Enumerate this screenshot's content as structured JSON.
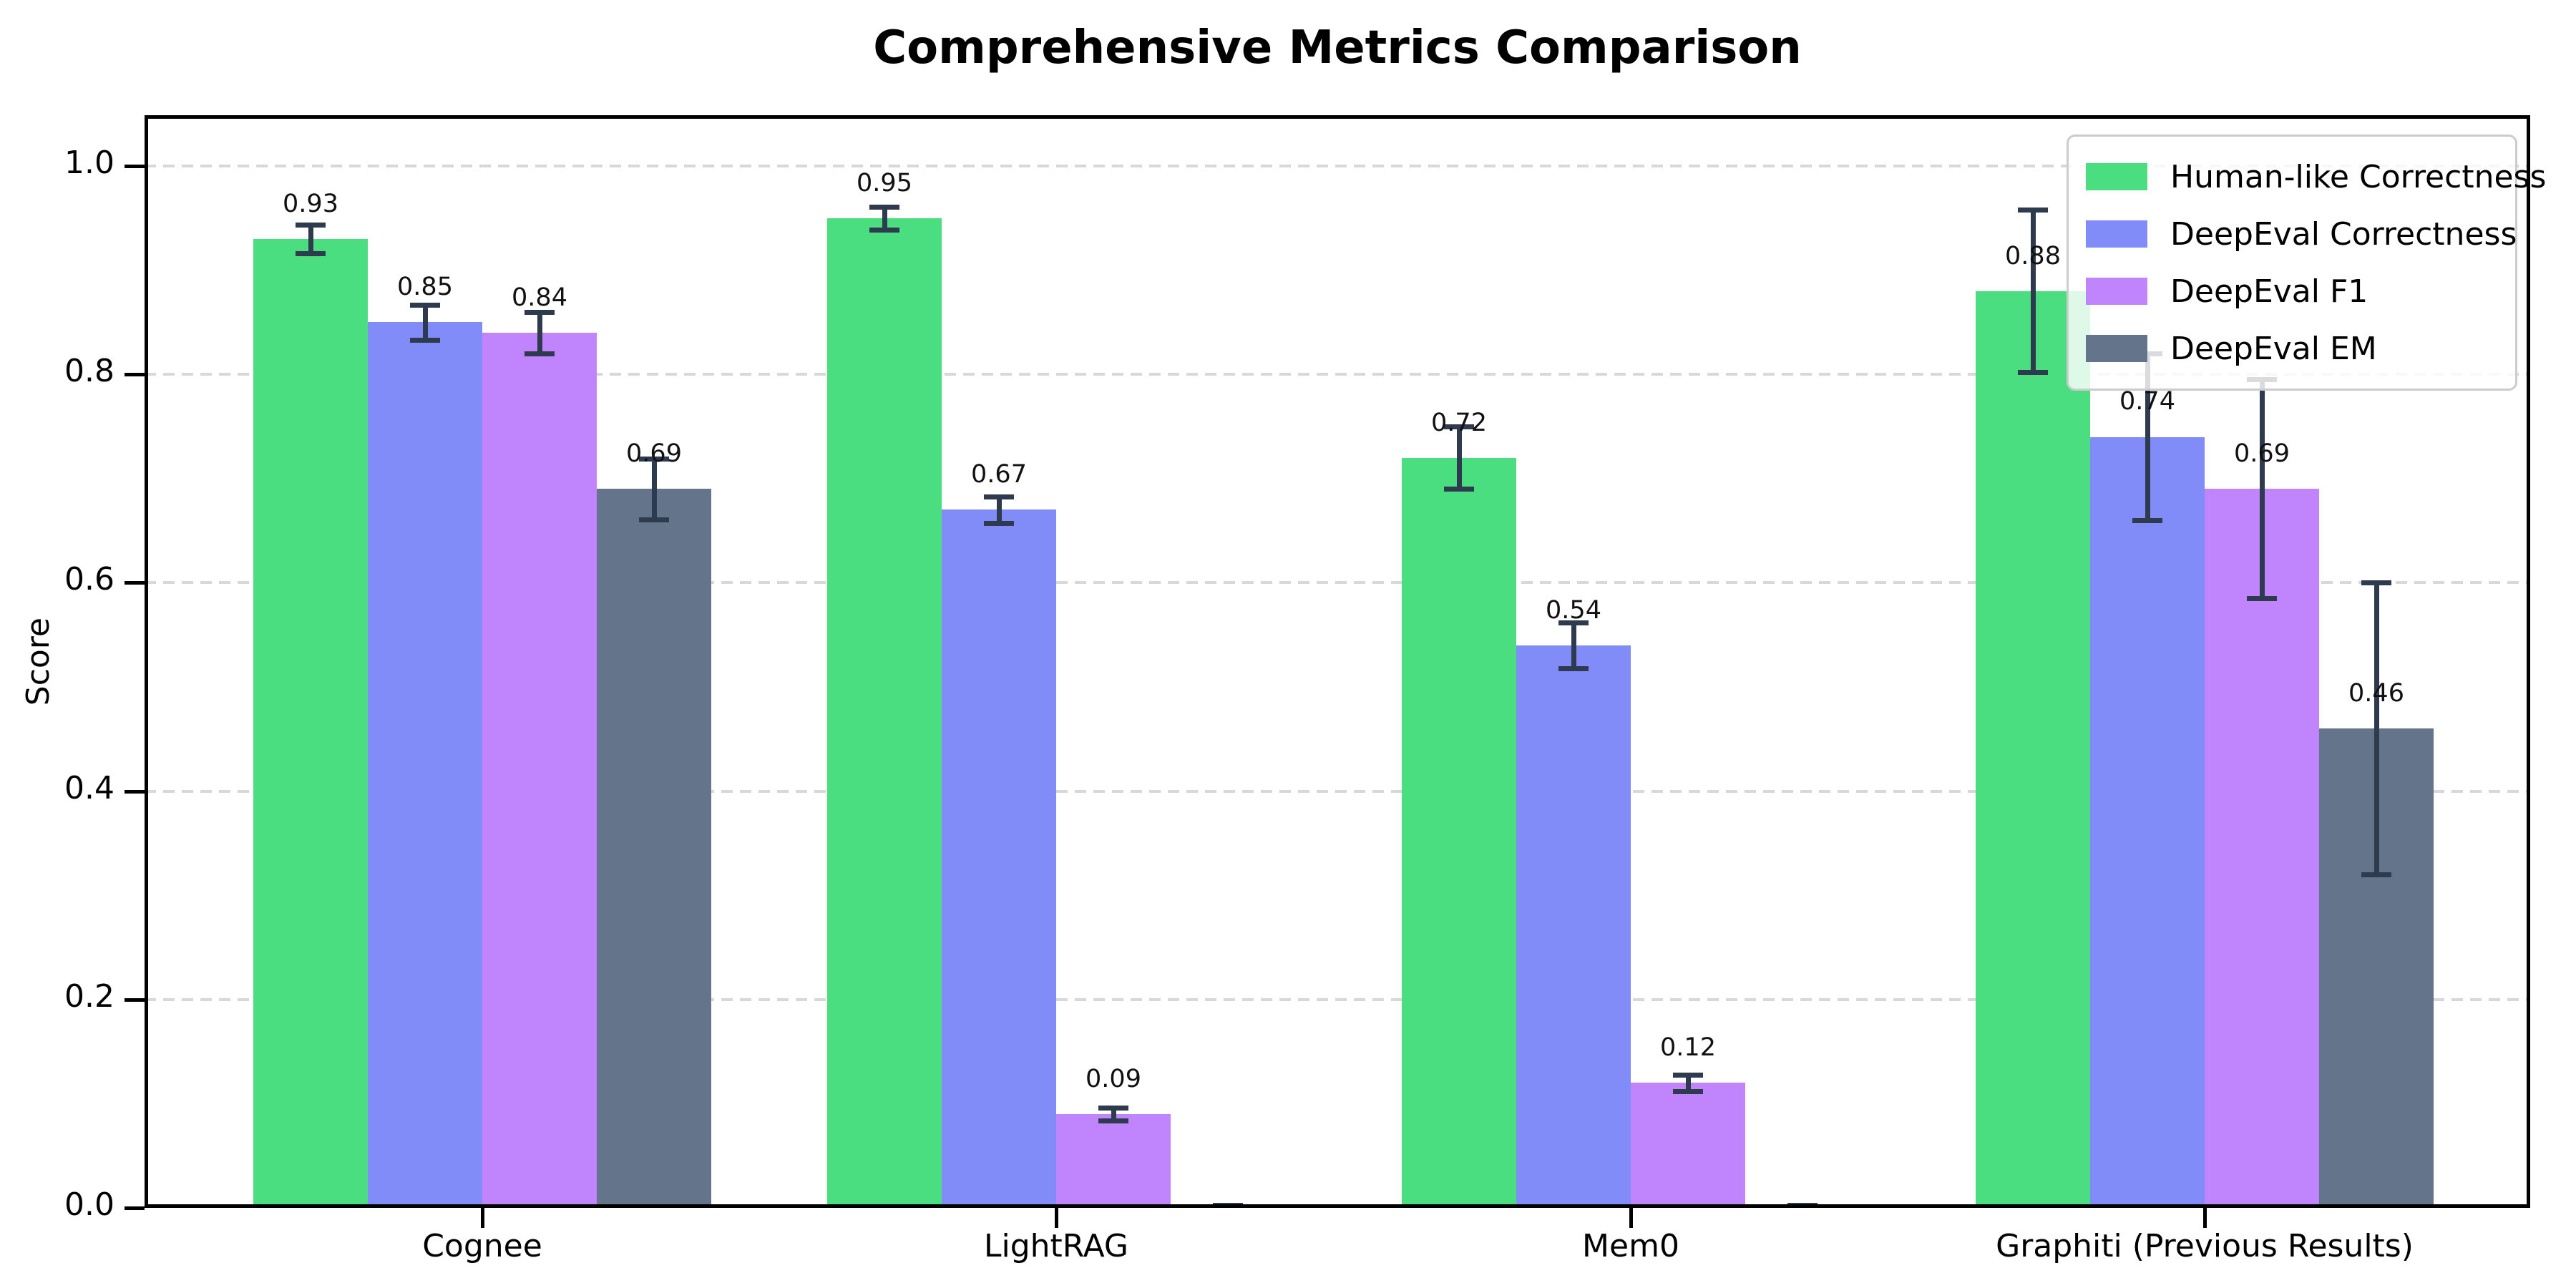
{
  "title": "Comprehensive Metrics Comparison",
  "chart_data": {
    "type": "bar",
    "title": "Comprehensive Metrics Comparison",
    "xlabel": "",
    "ylabel": "Score",
    "ylim": [
      0.0,
      1.05
    ],
    "yticks": [
      0.0,
      0.2,
      0.4,
      0.6,
      0.8,
      1.0
    ],
    "grid": "horizontal dashed",
    "legend_position": "upper right",
    "categories": [
      "Cognee",
      "LightRAG",
      "Mem0",
      "Graphiti (Previous Results)"
    ],
    "series": [
      {
        "name": "Human-like Correctness",
        "color": "#4ade80",
        "values": [
          0.93,
          0.95,
          0.72,
          0.88
        ],
        "errors": [
          0.014,
          0.011,
          0.03,
          0.078
        ],
        "labels": [
          "0.93",
          "0.95",
          "0.72",
          "0.88"
        ]
      },
      {
        "name": "DeepEval Correctness",
        "color": "#818cf8",
        "values": [
          0.85,
          0.67,
          0.54,
          0.74
        ],
        "errors": [
          0.017,
          0.013,
          0.022,
          0.08
        ],
        "labels": [
          "0.85",
          "0.67",
          "0.54",
          "0.74"
        ]
      },
      {
        "name": "DeepEval F1",
        "color": "#c084fc",
        "values": [
          0.84,
          0.09,
          0.12,
          0.69
        ],
        "errors": [
          0.02,
          0.006,
          0.008,
          0.105
        ],
        "labels": [
          "0.84",
          "0.09",
          "0.12",
          "0.69"
        ]
      },
      {
        "name": "DeepEval EM",
        "color": "#64748b",
        "values": [
          0.69,
          0.0,
          0.0,
          0.46
        ],
        "errors": [
          0.029,
          0.003,
          0.003,
          0.14
        ],
        "labels": [
          "0.69",
          "",
          "",
          "0.46"
        ]
      }
    ],
    "errorbar_color": "#2e3b4e",
    "grid_color": "#d8d8d8",
    "value_label_offset": 0.02
  }
}
